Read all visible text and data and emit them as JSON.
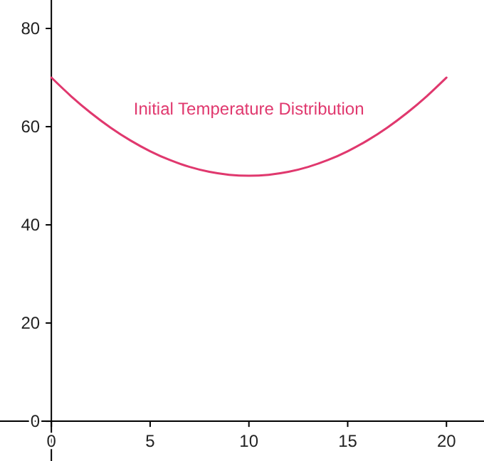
{
  "chart_data": {
    "type": "line",
    "x": [
      0,
      1,
      2,
      3,
      4,
      5,
      6,
      7,
      8,
      9,
      10,
      11,
      12,
      13,
      14,
      15,
      16,
      17,
      18,
      19,
      20
    ],
    "series": [
      {
        "name": "Initial Temperature Distribution",
        "color": "#e0386e",
        "values": [
          70,
          66.2,
          62.8,
          59.8,
          57.2,
          55,
          53.2,
          51.8,
          50.8,
          50.2,
          50,
          50.2,
          50.8,
          51.8,
          53.2,
          55,
          57.2,
          59.8,
          62.8,
          66.2,
          70
        ]
      }
    ],
    "xlim": [
      -2.6,
      21.9
    ],
    "ylim": [
      -8.1,
      85.8
    ],
    "xticks": [
      0,
      5,
      10,
      15,
      20
    ],
    "yticks": [
      0,
      20,
      40,
      60,
      80
    ],
    "grid": false,
    "legend": false,
    "marker": "none",
    "line_style": "solid"
  }
}
